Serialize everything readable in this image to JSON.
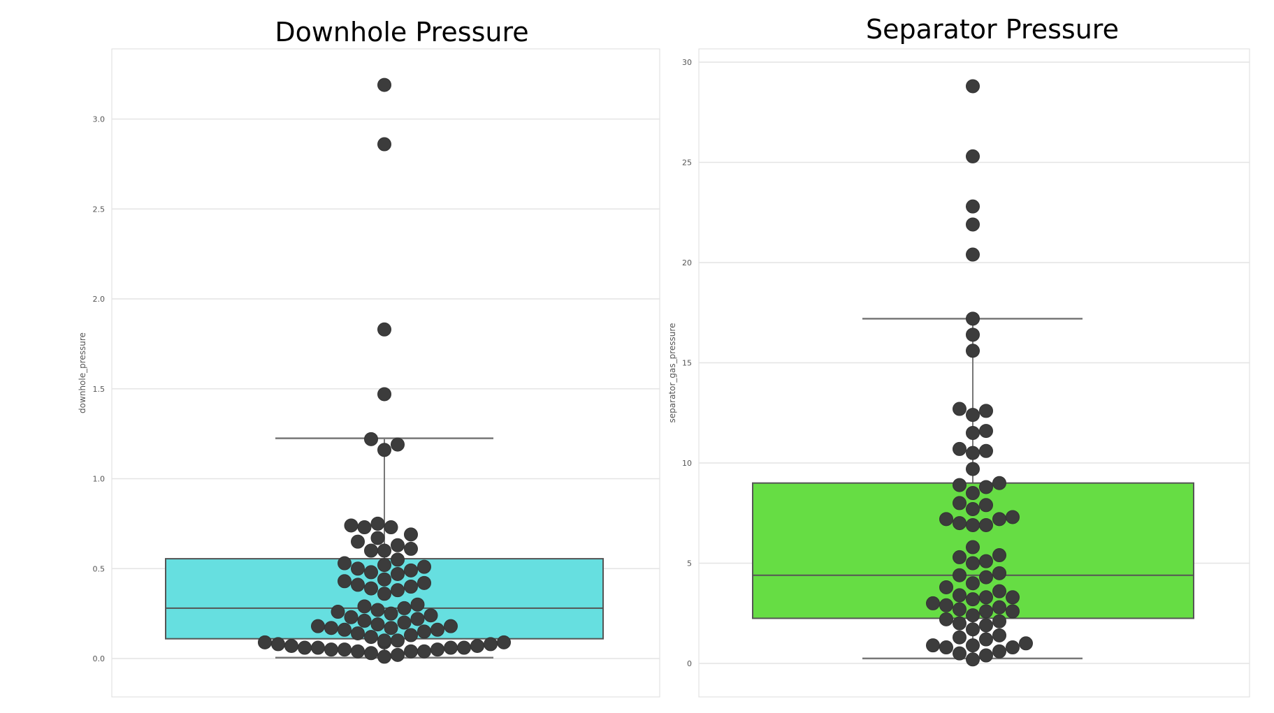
{
  "chart_data": [
    {
      "type": "box-swarm",
      "title": "Downhole Pressure",
      "xlabel": "",
      "ylabel": "downhole_pressure",
      "ylim": [
        -0.2,
        3.4
      ],
      "yticks": [
        0.0,
        0.5,
        1.0,
        1.5,
        2.0,
        2.5,
        3.0
      ],
      "ytick_labels": [
        "0.0",
        "0.5",
        "1.0",
        "1.5",
        "2.0",
        "2.5",
        "3.0"
      ],
      "grid": true,
      "box": {
        "q1": 0.11,
        "median": 0.28,
        "q3": 0.555,
        "whisker_low": 0.005,
        "whisker_high": 1.225,
        "color": "#66dfe0"
      },
      "points": [
        3.19,
        2.86,
        1.83,
        1.47,
        1.22,
        1.19,
        1.16,
        0.75,
        0.74,
        0.73,
        0.73,
        0.69,
        0.67,
        0.65,
        0.63,
        0.61,
        0.6,
        0.6,
        0.55,
        0.53,
        0.52,
        0.51,
        0.5,
        0.49,
        0.48,
        0.47,
        0.44,
        0.43,
        0.42,
        0.41,
        0.4,
        0.39,
        0.38,
        0.36,
        0.3,
        0.29,
        0.28,
        0.27,
        0.26,
        0.25,
        0.24,
        0.23,
        0.22,
        0.21,
        0.2,
        0.19,
        0.18,
        0.18,
        0.17,
        0.17,
        0.16,
        0.16,
        0.15,
        0.14,
        0.13,
        0.12,
        0.1,
        0.1,
        0.09,
        0.09,
        0.09,
        0.08,
        0.08,
        0.07,
        0.07,
        0.06,
        0.06,
        0.06,
        0.06,
        0.05,
        0.05,
        0.05,
        0.04,
        0.04,
        0.04,
        0.03,
        0.02,
        0.01
      ]
    },
    {
      "type": "box-swarm",
      "title": "Separator Pressure",
      "xlabel": "",
      "ylabel": "separator_gas_pressure",
      "ylim": [
        -1.7,
        30.6
      ],
      "yticks": [
        0,
        5,
        10,
        15,
        20,
        25,
        30
      ],
      "ytick_labels": [
        "0",
        "5",
        "10",
        "15",
        "20",
        "25",
        "30"
      ],
      "grid": true,
      "box": {
        "q1": 2.25,
        "median": 4.4,
        "q3": 9.0,
        "whisker_low": 0.25,
        "whisker_high": 17.2,
        "color": "#66dd44"
      },
      "points": [
        28.8,
        25.3,
        22.8,
        21.9,
        20.4,
        17.2,
        16.4,
        15.6,
        12.7,
        12.6,
        12.4,
        11.6,
        11.5,
        10.7,
        10.6,
        10.5,
        9.7,
        9.0,
        8.9,
        8.8,
        8.5,
        8.0,
        7.9,
        7.7,
        7.3,
        7.2,
        7.2,
        7.0,
        6.9,
        6.9,
        5.8,
        5.4,
        5.3,
        5.1,
        5.0,
        4.5,
        4.4,
        4.3,
        4.0,
        3.8,
        3.6,
        3.4,
        3.3,
        3.3,
        3.2,
        3.0,
        2.9,
        2.8,
        2.7,
        2.6,
        2.6,
        2.4,
        2.2,
        2.1,
        2.0,
        1.9,
        1.7,
        1.4,
        1.3,
        1.2,
        1.0,
        0.9,
        0.9,
        0.8,
        0.8,
        0.6,
        0.5,
        0.4,
        0.2
      ]
    }
  ]
}
